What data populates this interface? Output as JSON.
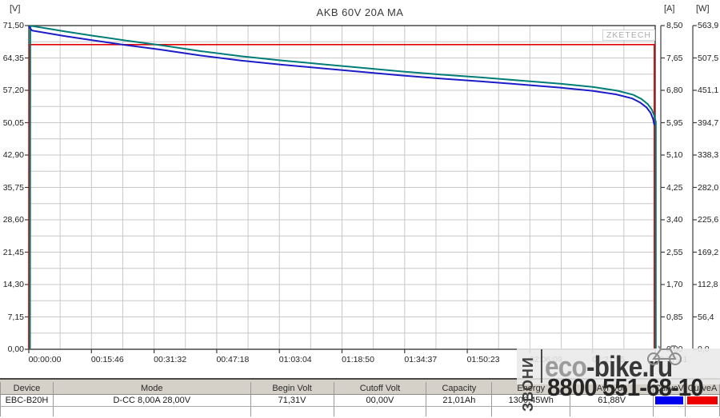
{
  "title": "AKB 60V 20A MA",
  "unit_labels": {
    "voltage": "[V]",
    "current": "[A]",
    "power": "[W]"
  },
  "logo_text": "ZKETECH",
  "watermark": {
    "call_vertical": "ЗВОНИ",
    "brand_gray": "eco",
    "brand_dark": "-bike.ru",
    "phone": "8800 551-68-10"
  },
  "chart_data": {
    "type": "line",
    "title": "AKB 60V 20A MA",
    "x_axis": {
      "kind": "elapsed time",
      "range_seconds": [
        0,
        9461
      ],
      "tick_labels": [
        "00:00:00",
        "00:15:46",
        "00:31:32",
        "00:47:18",
        "01:03:04",
        "01:18:50",
        "01:34:37",
        "01:50:23",
        "02:06:09",
        "02:21:55",
        "02:37:41"
      ]
    },
    "grid": {
      "x_divisions": 20,
      "y_divisions": 20,
      "color": "#c8c8c8"
    },
    "y_axes": {
      "voltage": {
        "unit": "[V]",
        "range": [
          0,
          71.5
        ],
        "tick_labels": [
          "71,50",
          "64,35",
          "57,20",
          "50,05",
          "42,90",
          "35,75",
          "28,60",
          "21,45",
          "14,30",
          "7,15",
          "0,00"
        ]
      },
      "current": {
        "unit": "[A]",
        "range": [
          0,
          8.5
        ],
        "tick_labels": [
          "8,50",
          "7,65",
          "6,80",
          "5,95",
          "5,10",
          "4,25",
          "3,40",
          "2,55",
          "1,70",
          "0,85",
          "0,00"
        ]
      },
      "power": {
        "unit": "[W]",
        "range": [
          0,
          563.9
        ],
        "tick_labels": [
          "563,9",
          "507,5",
          "451,1",
          "394,7",
          "338,3",
          "282,0",
          "225,6",
          "169,2",
          "112,8",
          "56,4",
          "0,0"
        ]
      }
    },
    "series": [
      {
        "name": "CurveA (current, A)",
        "axis": "current",
        "color": "#e00000",
        "width": 1.6,
        "dx": 0,
        "points": [
          [
            0,
            0
          ],
          [
            5,
            8.0
          ],
          [
            9448,
            8.0
          ],
          [
            9448,
            0
          ]
        ]
      },
      {
        "name": "Power (W)",
        "axis": "power",
        "color": "#007d76",
        "width": 2,
        "dx": 1.5,
        "points": [
          [
            0,
            0
          ],
          [
            5,
            570.5
          ],
          [
            48,
            563.2
          ],
          [
            532,
            553.6
          ],
          [
            943,
            546.4
          ],
          [
            1462,
            537.6
          ],
          [
            1982,
            529.6
          ],
          [
            2587,
            519.2
          ],
          [
            3191,
            510.4
          ],
          [
            3795,
            503.2
          ],
          [
            4400,
            496.8
          ],
          [
            5004,
            490.4
          ],
          [
            5608,
            484.0
          ],
          [
            6213,
            478.4
          ],
          [
            6817,
            473.6
          ],
          [
            7421,
            468.0
          ],
          [
            8026,
            462.4
          ],
          [
            8509,
            456.8
          ],
          [
            8872,
            450.4
          ],
          [
            9114,
            443.2
          ],
          [
            9235,
            436.0
          ],
          [
            9331,
            427.2
          ],
          [
            9392,
            417.6
          ],
          [
            9428,
            407.2
          ],
          [
            9452,
            396.0
          ],
          [
            9452,
            0
          ]
        ]
      },
      {
        "name": "CurveV (voltage, V)",
        "axis": "voltage",
        "color": "#1c1cc8",
        "width": 2,
        "dx": 0,
        "points": [
          [
            0,
            71.31
          ],
          [
            48,
            70.4
          ],
          [
            532,
            69.2
          ],
          [
            943,
            68.3
          ],
          [
            1462,
            67.2
          ],
          [
            1982,
            66.2
          ],
          [
            2587,
            64.9
          ],
          [
            3191,
            63.8
          ],
          [
            3795,
            62.9
          ],
          [
            4400,
            62.1
          ],
          [
            5004,
            61.3
          ],
          [
            5608,
            60.5
          ],
          [
            6213,
            59.8
          ],
          [
            6817,
            59.2
          ],
          [
            7421,
            58.5
          ],
          [
            8026,
            57.8
          ],
          [
            8509,
            57.1
          ],
          [
            8872,
            56.3
          ],
          [
            9114,
            55.4
          ],
          [
            9235,
            54.5
          ],
          [
            9331,
            53.4
          ],
          [
            9392,
            52.2
          ],
          [
            9428,
            50.9
          ],
          [
            9448,
            49.5
          ]
        ]
      }
    ]
  },
  "table": {
    "headers": [
      "Device",
      "Mode",
      "Begin Volt",
      "Cutoff Volt",
      "Capacity",
      "Energy",
      "Avr Volt",
      "CurveV",
      "CurveA"
    ],
    "values": [
      "EBC-B20H",
      "D-CC 8,00A 28,00V",
      "71,31V",
      "00,00V",
      "21,01Ah",
      "1300,45Wh",
      "61,88V",
      "",
      ""
    ],
    "curve_v_color": "#0000ee",
    "curve_a_color": "#ee0000"
  }
}
